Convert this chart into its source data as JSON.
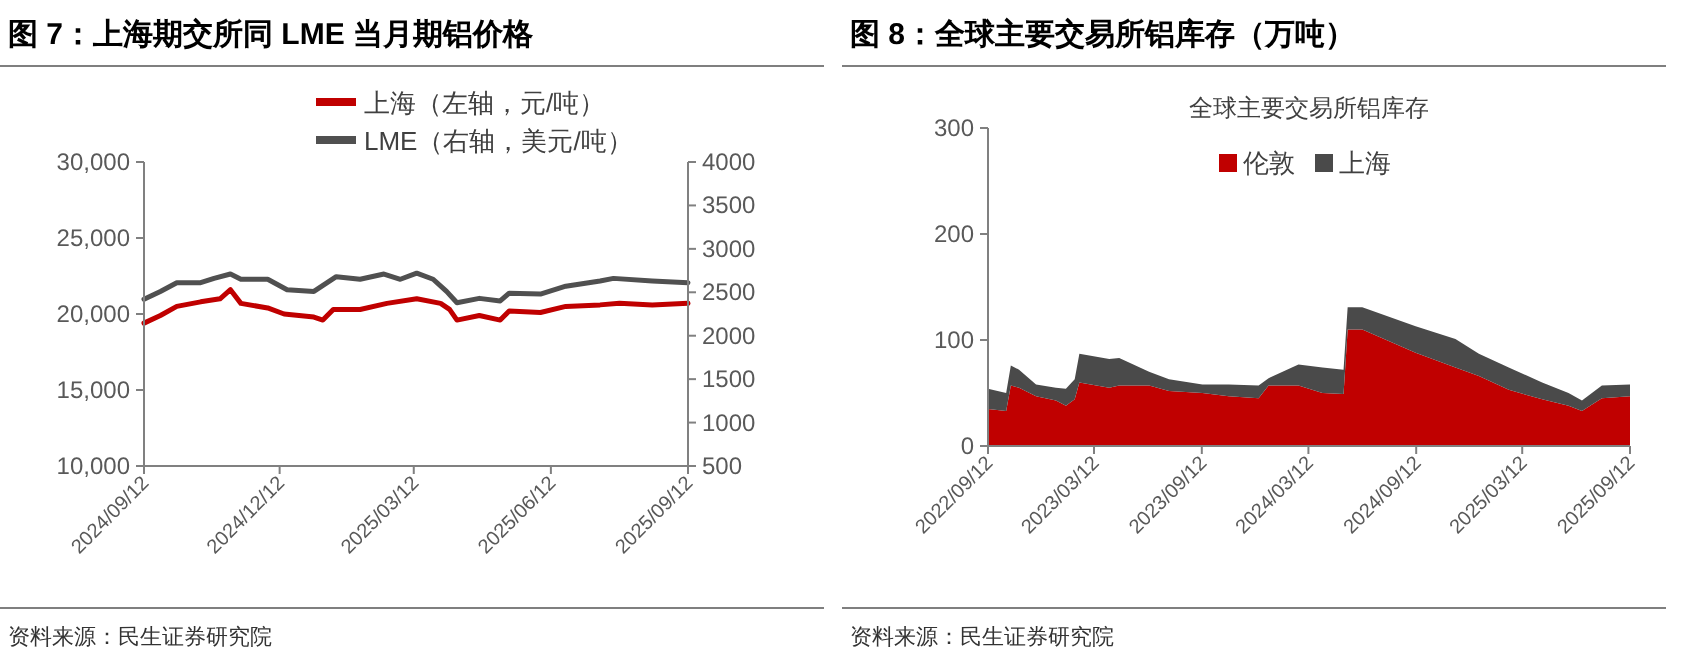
{
  "chart_data": [
    {
      "type": "line",
      "title": "图 7：上海期交所同 LME 当月期铝价格",
      "legend": "top",
      "grid": false,
      "annotations": [
        "资料来源：民生证券研究院"
      ],
      "xlim": [
        "2024-09-12",
        "2025-09-12"
      ],
      "xticks": [
        {
          "value": "2024-09-12",
          "label": "2024/09/12"
        },
        {
          "value": "2024-12-12",
          "label": "2024/12/12"
        },
        {
          "value": "2025-03-12",
          "label": "2025/03/12"
        },
        {
          "value": "2025-06-12",
          "label": "2025/06/12"
        },
        {
          "value": "2025-09-12",
          "label": "2025/09/12"
        }
      ],
      "ylim": [
        10000,
        30000
      ],
      "yticks": [
        {
          "value": 10000,
          "label": "10,000"
        },
        {
          "value": 15000,
          "label": "15,000"
        },
        {
          "value": 20000,
          "label": "20,000"
        },
        {
          "value": 25000,
          "label": "25,000"
        },
        {
          "value": 30000,
          "label": "30,000"
        }
      ],
      "y2lim": [
        500,
        4000
      ],
      "y2ticks": [
        500,
        1000,
        1500,
        2000,
        2500,
        3000,
        3500,
        4000
      ],
      "series": [
        {
          "name": "上海（左轴，元/吨）",
          "color": "#c00000",
          "x": [
            "2024-09-12",
            "2024-09-23",
            "2024-10-04",
            "2024-10-20",
            "2024-11-02",
            "2024-11-09",
            "2024-11-16",
            "2024-12-04",
            "2024-12-15",
            "2025-01-04",
            "2025-01-10",
            "2025-01-17",
            "2025-02-04",
            "2025-02-22",
            "2025-03-14",
            "2025-03-30",
            "2025-04-05",
            "2025-04-10",
            "2025-04-25",
            "2025-05-09",
            "2025-05-15",
            "2025-06-05",
            "2025-06-22",
            "2025-07-15",
            "2025-07-28",
            "2025-08-19",
            "2025-09-12"
          ],
          "values": [
            19400,
            19900,
            20500,
            20800,
            21000,
            21600,
            20700,
            20400,
            20000,
            19800,
            19600,
            20300,
            20300,
            20700,
            21000,
            20700,
            20300,
            19600,
            19900,
            19600,
            20200,
            20100,
            20500,
            20600,
            20700,
            20600,
            20700
          ]
        },
        {
          "name": "LME（右轴，美元/吨）",
          "color": "#505050",
          "axis": "y2",
          "x": [
            "2024-09-12",
            "2024-09-23",
            "2024-10-04",
            "2024-10-20",
            "2024-10-29",
            "2024-11-09",
            "2024-11-16",
            "2024-12-04",
            "2024-12-17",
            "2025-01-04",
            "2025-01-19",
            "2025-02-04",
            "2025-02-20",
            "2025-03-03",
            "2025-03-14",
            "2025-03-25",
            "2025-04-03",
            "2025-04-10",
            "2025-04-25",
            "2025-05-09",
            "2025-05-15",
            "2025-06-05",
            "2025-06-22",
            "2025-07-15",
            "2025-07-24",
            "2025-08-19",
            "2025-09-12"
          ],
          "values": [
            2420,
            2510,
            2610,
            2610,
            2660,
            2710,
            2650,
            2650,
            2530,
            2510,
            2680,
            2650,
            2710,
            2650,
            2720,
            2650,
            2510,
            2380,
            2430,
            2400,
            2490,
            2480,
            2570,
            2630,
            2660,
            2630,
            2610
          ]
        }
      ]
    },
    {
      "type": "area",
      "title": "图 8：全球主要交易所铝库存（万吨）",
      "subtitle": "全球主要交易所铝库存",
      "legend": "top",
      "grid": false,
      "stacked": true,
      "annotations": [
        "资料来源：民生证券研究院"
      ],
      "xlim": [
        "2022-09-12",
        "2025-09-12"
      ],
      "xticks": [
        {
          "value": "2022-09-12",
          "label": "2022/09/12"
        },
        {
          "value": "2023-03-12",
          "label": "2023/03/12"
        },
        {
          "value": "2023-09-12",
          "label": "2023/09/12"
        },
        {
          "value": "2024-03-12",
          "label": "2024/03/12"
        },
        {
          "value": "2024-09-12",
          "label": "2024/09/12"
        },
        {
          "value": "2025-03-12",
          "label": "2025/03/12"
        },
        {
          "value": "2025-09-12",
          "label": "2025/09/12"
        }
      ],
      "ylim": [
        0,
        300
      ],
      "yticks": [
        0,
        100,
        200,
        300
      ],
      "x": [
        "2022-09-12",
        "2022-10-13",
        "2022-10-21",
        "2022-11-04",
        "2022-12-03",
        "2023-01-06",
        "2023-01-23",
        "2023-02-07",
        "2023-02-15",
        "2023-04-07",
        "2023-04-24",
        "2023-06-14",
        "2023-07-18",
        "2023-09-13",
        "2023-10-28",
        "2023-12-18",
        "2024-01-04",
        "2024-02-24",
        "2024-04-05",
        "2024-05-11",
        "2024-05-18",
        "2024-06-12",
        "2024-09-11",
        "2024-11-18",
        "2024-12-28",
        "2025-02-17",
        "2025-04-15",
        "2025-05-30",
        "2025-06-22",
        "2025-07-26",
        "2025-09-12"
      ],
      "series": [
        {
          "name": "伦敦",
          "color": "#c00000",
          "values": [
            35,
            33,
            57,
            55,
            47,
            43,
            38,
            44,
            60,
            55,
            57,
            57,
            52,
            50,
            47,
            45,
            57,
            57,
            50,
            49,
            110,
            110,
            88,
            74,
            66,
            53,
            44,
            38,
            33,
            45,
            47
          ]
        },
        {
          "name": "上海",
          "color": "#4a4a4a",
          "values": [
            19,
            17,
            19,
            17,
            11,
            12,
            16,
            19,
            27,
            27,
            26,
            13,
            11,
            8,
            11,
            12,
            7,
            20,
            24,
            23,
            21,
            21,
            25,
            27,
            21,
            21,
            16,
            12,
            10,
            12,
            11
          ]
        }
      ]
    }
  ]
}
